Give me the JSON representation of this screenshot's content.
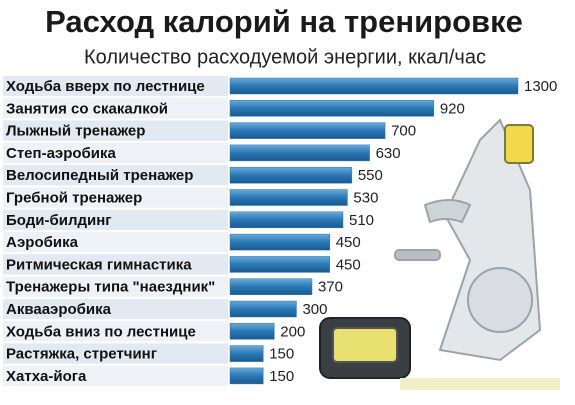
{
  "chart_data": {
    "type": "bar",
    "title": "Расход калорий на тренировке",
    "subtitle": "Количество расходуемой энергии, ккал/час",
    "categories": [
      "Ходьба вверх по лестнице",
      "Занятия со скакалкой",
      "Лыжный тренажер",
      "Степ-аэробика",
      "Велосипедный тренажер",
      "Гребной тренажер",
      "Боди-билдинг",
      "Аэробика",
      "Ритмическая гимнастика",
      "Тренажеры типа \"наездник\"",
      "Аквааэробика",
      "Ходьба вниз по лестнице",
      "Растяжка, стретчинг",
      "Хатха-йога"
    ],
    "values": [
      1300,
      920,
      700,
      630,
      550,
      530,
      510,
      450,
      450,
      370,
      300,
      200,
      150,
      150
    ],
    "color": "#2a78b5"
  }
}
